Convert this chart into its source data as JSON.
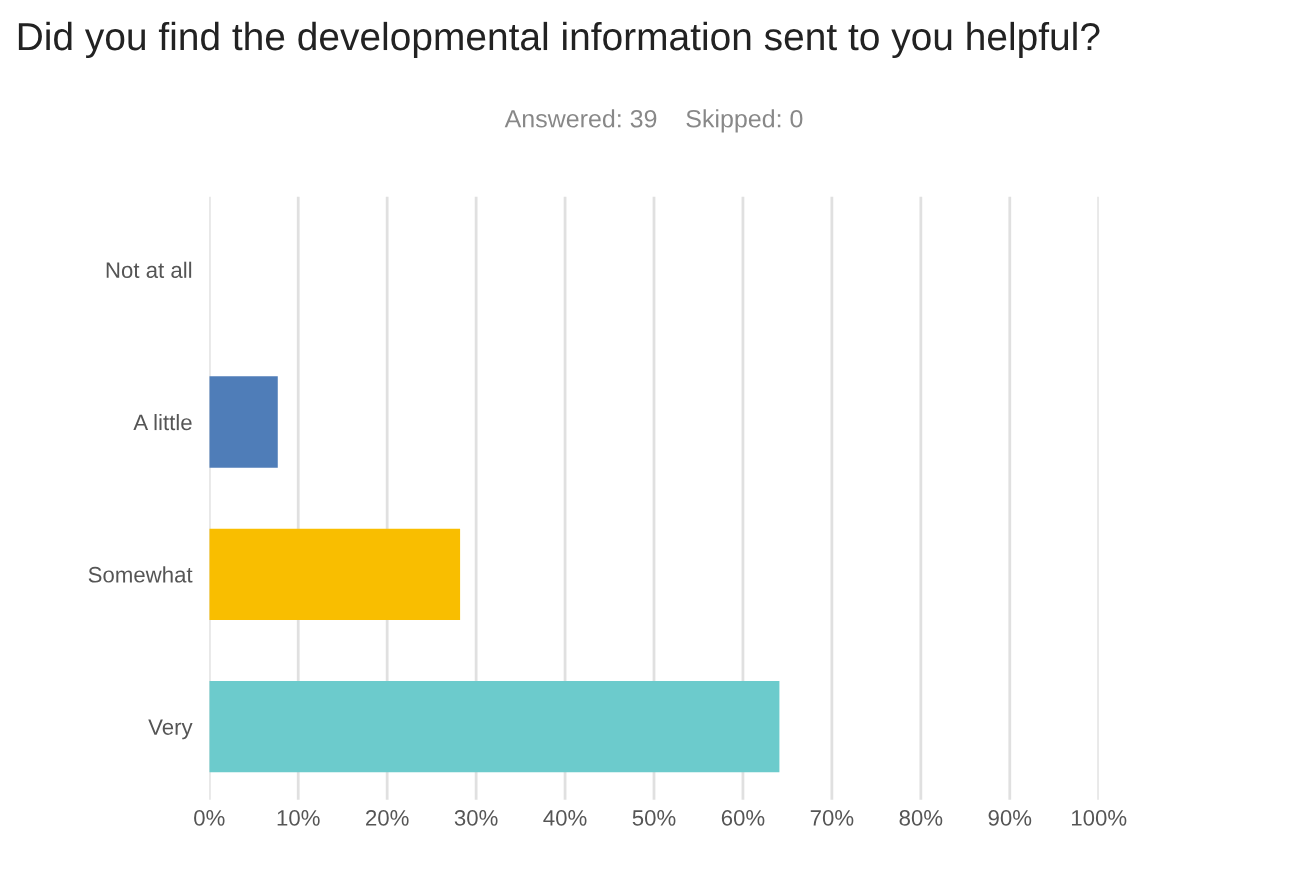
{
  "chart_data": {
    "type": "bar",
    "orientation": "horizontal",
    "title": "Did you find the developmental information sent to you helpful?",
    "subtitle": "Answered: 39    Skipped: 0",
    "categories": [
      "Not at all",
      "A little",
      "Somewhat",
      "Very"
    ],
    "values": [
      0,
      7.7,
      28.2,
      64.1
    ],
    "colors": [
      "#4f7db8",
      "#4f7db8",
      "#f9be00",
      "#6ccbcc"
    ],
    "xlim": [
      0,
      100
    ],
    "xticks": [
      {
        "value": 0,
        "label": "0%"
      },
      {
        "value": 10,
        "label": "10%"
      },
      {
        "value": 20,
        "label": "20%"
      },
      {
        "value": 30,
        "label": "30%"
      },
      {
        "value": 40,
        "label": "40%"
      },
      {
        "value": 50,
        "label": "50%"
      },
      {
        "value": 60,
        "label": "60%"
      },
      {
        "value": 70,
        "label": "70%"
      },
      {
        "value": 80,
        "label": "80%"
      },
      {
        "value": 90,
        "label": "90%"
      },
      {
        "value": 100,
        "label": "100%"
      }
    ],
    "grid": "x"
  }
}
